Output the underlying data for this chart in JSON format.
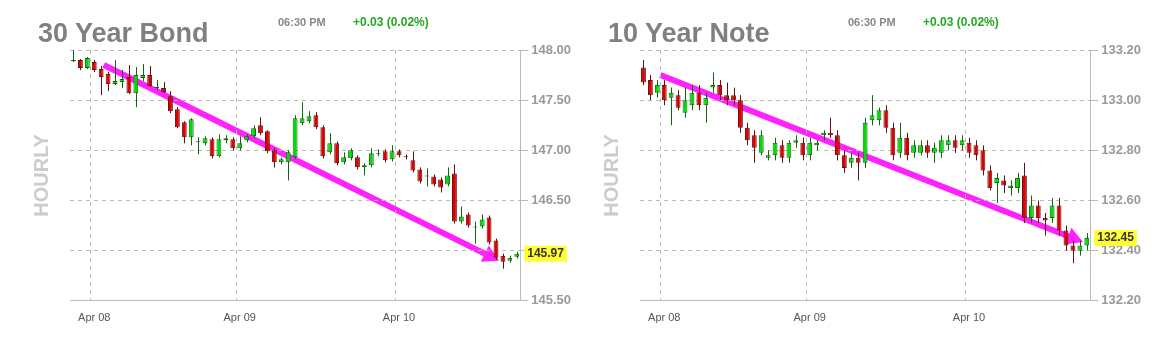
{
  "chart_data": [
    {
      "type": "candlestick",
      "title": "30 Year Bond",
      "subtitle": "06:30 PM",
      "ylabel": "HOURLY",
      "annotations": [
        "+0.03 (0.02%)",
        "145.97"
      ],
      "categories": [
        null,
        null,
        null,
        "Apr 08",
        null,
        null,
        null,
        null,
        null,
        null,
        null,
        null,
        null,
        null,
        null,
        null,
        null,
        null,
        null,
        null,
        null,
        null,
        null,
        null,
        "Apr 09",
        null,
        null,
        null,
        null,
        null,
        null,
        null,
        null,
        null,
        null,
        null,
        null,
        null,
        null,
        null,
        null,
        null,
        null,
        null,
        null,
        null,
        null,
        "Apr 10",
        null,
        null,
        null,
        null,
        null,
        null,
        null,
        null,
        null,
        null,
        null,
        null,
        null,
        null,
        null,
        null,
        null
      ],
      "ohlc": [
        [
          147.89,
          148.0,
          147.88,
          147.9
        ],
        [
          147.9,
          147.91,
          147.8,
          147.82
        ],
        [
          147.82,
          147.93,
          147.81,
          147.92
        ],
        [
          147.88,
          147.9,
          147.78,
          147.8
        ],
        [
          147.81,
          147.84,
          147.55,
          147.73
        ],
        [
          147.76,
          147.78,
          147.59,
          147.66
        ],
        [
          147.66,
          147.9,
          147.65,
          147.69
        ],
        [
          147.68,
          147.8,
          147.62,
          147.71
        ],
        [
          147.73,
          147.85,
          147.56,
          147.57
        ],
        [
          147.57,
          147.83,
          147.43,
          147.75
        ],
        [
          147.72,
          147.86,
          147.69,
          147.75
        ],
        [
          147.75,
          147.84,
          147.63,
          147.64
        ],
        [
          147.62,
          147.7,
          147.6,
          147.63
        ],
        [
          147.62,
          147.68,
          147.57,
          147.58
        ],
        [
          147.54,
          147.59,
          147.37,
          147.39
        ],
        [
          147.41,
          147.43,
          147.22,
          147.23
        ],
        [
          147.28,
          147.29,
          147.07,
          147.13
        ],
        [
          147.13,
          147.32,
          147.05,
          147.31
        ],
        [
          147.08,
          147.13,
          146.96,
          147.09
        ],
        [
          147.07,
          147.14,
          147.05,
          147.12
        ],
        [
          147.11,
          147.13,
          146.92,
          146.94
        ],
        [
          146.94,
          147.16,
          146.93,
          147.11
        ],
        [
          147.1,
          147.15,
          147.07,
          147.12
        ],
        [
          147.11,
          147.13,
          147.0,
          147.02
        ],
        [
          147.02,
          147.14,
          147.0,
          147.07
        ],
        [
          147.1,
          147.16,
          147.08,
          147.14
        ],
        [
          147.14,
          147.25,
          147.12,
          147.22
        ],
        [
          147.25,
          147.33,
          147.15,
          147.17
        ],
        [
          147.19,
          147.2,
          146.97,
          146.99
        ],
        [
          147.0,
          147.02,
          146.83,
          146.88
        ],
        [
          146.88,
          146.93,
          146.86,
          146.91
        ],
        [
          146.88,
          147.0,
          146.7,
          146.98
        ],
        [
          146.93,
          147.35,
          146.91,
          147.32
        ],
        [
          147.27,
          147.48,
          147.25,
          147.32
        ],
        [
          147.29,
          147.39,
          147.27,
          147.34
        ],
        [
          147.35,
          147.38,
          147.21,
          147.23
        ],
        [
          147.23,
          147.25,
          146.92,
          146.94
        ],
        [
          146.98,
          147.17,
          146.96,
          147.07
        ],
        [
          147.07,
          147.09,
          146.85,
          146.87
        ],
        [
          146.88,
          146.98,
          146.86,
          146.93
        ],
        [
          146.92,
          147.02,
          146.9,
          147.0
        ],
        [
          146.93,
          146.95,
          146.81,
          146.83
        ],
        [
          146.83,
          146.87,
          146.75,
          146.85
        ],
        [
          146.85,
          147.02,
          146.83,
          146.97
        ],
        [
          146.96,
          147.01,
          146.94,
          146.97
        ],
        [
          146.99,
          147.01,
          146.88,
          146.9
        ],
        [
          146.91,
          147.05,
          146.89,
          146.99
        ],
        [
          146.99,
          147.01,
          146.93,
          146.95
        ],
        [
          146.94,
          146.96,
          146.91,
          146.93
        ],
        [
          146.9,
          146.99,
          146.78,
          146.8
        ],
        [
          146.81,
          146.83,
          146.67,
          146.69
        ],
        [
          146.74,
          146.82,
          146.64,
          146.75
        ],
        [
          146.74,
          146.76,
          146.64,
          146.66
        ],
        [
          146.71,
          146.73,
          146.58,
          146.63
        ],
        [
          146.66,
          146.83,
          146.64,
          146.75
        ],
        [
          146.77,
          146.86,
          146.27,
          146.29
        ],
        [
          146.29,
          146.44,
          146.27,
          146.34
        ],
        [
          146.36,
          146.38,
          146.23,
          146.25
        ],
        [
          146.23,
          146.29,
          146.07,
          146.24
        ],
        [
          146.24,
          146.36,
          146.22,
          146.31
        ],
        [
          146.33,
          146.35,
          146.06,
          146.08
        ],
        [
          146.1,
          146.12,
          145.91,
          145.93
        ],
        [
          145.95,
          145.97,
          145.82,
          145.89
        ],
        [
          145.9,
          145.95,
          145.88,
          145.93
        ],
        [
          145.94,
          145.99,
          145.92,
          145.97
        ]
      ],
      "ylim": [
        145.5,
        148.0
      ],
      "yticks": [
        {
          "value": 145.5,
          "label": "145.50"
        },
        {
          "value": 146.0,
          "label": null
        },
        {
          "value": 146.5,
          "label": "146.50"
        },
        {
          "value": 147.0,
          "label": "147.00"
        },
        {
          "value": 147.5,
          "label": "147.50"
        },
        {
          "value": 148.0,
          "label": "148.00"
        }
      ],
      "grid": true,
      "legend": false
    },
    {
      "type": "candlestick",
      "title": "10 Year Note",
      "subtitle": "06:30 PM",
      "ylabel": "HOURLY",
      "annotations": [
        "+0.03 (0.02%)",
        "132.45"
      ],
      "categories": [
        null,
        null,
        null,
        "Apr 08",
        null,
        null,
        null,
        null,
        null,
        null,
        null,
        null,
        null,
        null,
        null,
        null,
        null,
        null,
        null,
        null,
        null,
        null,
        null,
        null,
        "Apr 09",
        null,
        null,
        null,
        null,
        null,
        null,
        null,
        null,
        null,
        null,
        null,
        null,
        null,
        null,
        null,
        null,
        null,
        null,
        null,
        null,
        null,
        null,
        "Apr 10",
        null,
        null,
        null,
        null,
        null,
        null,
        null,
        null,
        null,
        null,
        null,
        null,
        null,
        null,
        null,
        null,
        null
      ],
      "ohlc": [
        [
          133.13,
          133.16,
          133.06,
          133.07
        ],
        [
          133.08,
          133.1,
          133.0,
          133.02
        ],
        [
          133.03,
          133.08,
          133.01,
          133.06
        ],
        [
          133.06,
          133.08,
          132.98,
          133.0
        ],
        [
          133.01,
          133.05,
          132.9,
          133.03
        ],
        [
          133.02,
          133.04,
          132.96,
          132.97
        ],
        [
          132.95,
          133.05,
          132.93,
          133.0
        ],
        [
          132.98,
          133.06,
          132.96,
          133.03
        ],
        [
          133.03,
          133.06,
          132.96,
          132.98
        ],
        [
          132.98,
          133.03,
          132.91,
          133.01
        ],
        [
          133.05,
          133.11,
          133.03,
          133.06
        ],
        [
          133.06,
          133.08,
          133.0,
          133.02
        ],
        [
          133.02,
          133.07,
          132.98,
          133.0
        ],
        [
          133.02,
          133.05,
          132.98,
          133.0
        ],
        [
          133.0,
          133.02,
          132.87,
          132.89
        ],
        [
          132.89,
          132.91,
          132.82,
          132.84
        ],
        [
          132.86,
          132.88,
          132.75,
          132.81
        ],
        [
          132.79,
          132.88,
          132.78,
          132.86
        ],
        [
          132.77,
          132.8,
          132.76,
          132.78
        ],
        [
          132.78,
          132.85,
          132.76,
          132.83
        ],
        [
          132.82,
          132.84,
          132.75,
          132.77
        ],
        [
          132.77,
          132.84,
          132.75,
          132.83
        ],
        [
          132.83,
          132.86,
          132.81,
          132.84
        ],
        [
          132.83,
          132.85,
          132.76,
          132.78
        ],
        [
          132.78,
          132.85,
          132.76,
          132.83
        ],
        [
          132.82,
          132.84,
          132.8,
          132.83
        ],
        [
          132.86,
          132.88,
          132.84,
          132.87
        ],
        [
          132.87,
          132.93,
          132.85,
          132.86
        ],
        [
          132.86,
          132.88,
          132.76,
          132.78
        ],
        [
          132.78,
          132.8,
          132.71,
          132.73
        ],
        [
          132.75,
          132.79,
          132.73,
          132.77
        ],
        [
          132.77,
          132.79,
          132.68,
          132.75
        ],
        [
          132.75,
          132.93,
          132.73,
          132.91
        ],
        [
          132.92,
          133.02,
          132.9,
          132.94
        ],
        [
          132.92,
          132.97,
          132.9,
          132.96
        ],
        [
          132.96,
          132.98,
          132.87,
          132.89
        ],
        [
          132.89,
          132.91,
          132.76,
          132.78
        ],
        [
          132.79,
          132.91,
          132.77,
          132.85
        ],
        [
          132.85,
          132.87,
          132.76,
          132.78
        ],
        [
          132.79,
          132.84,
          132.77,
          132.82
        ],
        [
          132.79,
          132.84,
          132.78,
          132.82
        ],
        [
          132.82,
          132.84,
          132.77,
          132.79
        ],
        [
          132.79,
          132.83,
          132.75,
          132.81
        ],
        [
          132.79,
          132.86,
          132.77,
          132.84
        ],
        [
          132.82,
          132.86,
          132.8,
          132.84
        ],
        [
          132.84,
          132.86,
          132.79,
          132.81
        ],
        [
          132.82,
          132.86,
          132.8,
          132.84
        ],
        [
          132.83,
          132.85,
          132.77,
          132.79
        ],
        [
          132.82,
          132.84,
          132.76,
          132.78
        ],
        [
          132.8,
          132.82,
          132.7,
          132.72
        ],
        [
          132.72,
          132.74,
          132.64,
          132.65
        ],
        [
          132.67,
          132.71,
          132.59,
          132.69
        ],
        [
          132.68,
          132.7,
          132.63,
          132.66
        ],
        [
          132.65,
          132.68,
          132.62,
          132.66
        ],
        [
          132.65,
          132.71,
          132.63,
          132.69
        ],
        [
          132.7,
          132.75,
          132.51,
          132.53
        ],
        [
          132.53,
          132.62,
          132.51,
          132.58
        ],
        [
          132.58,
          132.6,
          132.51,
          132.53
        ],
        [
          132.53,
          132.55,
          132.46,
          132.52
        ],
        [
          132.53,
          132.61,
          132.51,
          132.58
        ],
        [
          132.58,
          132.61,
          132.46,
          132.48
        ],
        [
          132.48,
          132.5,
          132.4,
          132.42
        ],
        [
          132.42,
          132.44,
          132.35,
          132.4
        ],
        [
          132.4,
          132.44,
          132.38,
          132.42
        ],
        [
          132.42,
          132.47,
          132.4,
          132.45
        ]
      ],
      "ylim": [
        132.2,
        133.2
      ],
      "yticks": [
        {
          "value": 132.2,
          "label": "132.20"
        },
        {
          "value": 132.4,
          "label": "132.40"
        },
        {
          "value": 132.6,
          "label": "132.60"
        },
        {
          "value": 132.8,
          "label": "132.80"
        },
        {
          "value": 133.0,
          "label": "133.00"
        },
        {
          "value": 133.2,
          "label": "133.20"
        }
      ],
      "grid": true,
      "legend": false
    }
  ]
}
